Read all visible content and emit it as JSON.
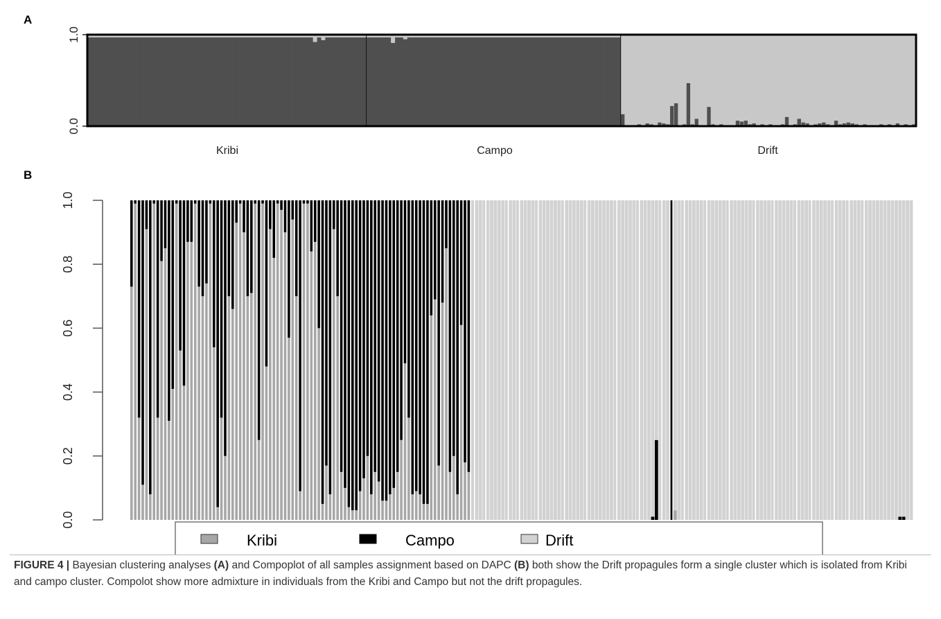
{
  "chart_data": [
    {
      "panel": "A",
      "type": "bar",
      "stacked": true,
      "ylim": [
        0,
        1
      ],
      "yticks": [
        "0.0",
        "1.0"
      ],
      "groups": [
        "Kribi",
        "Campo",
        "Drift"
      ],
      "group_sizes": [
        68,
        62,
        72
      ],
      "colors": {
        "Kribi": "#4f4f4f",
        "Drift": "#c8c8c8"
      },
      "drift_ancestry_kribi_campo": [
        0.13,
        0,
        0,
        0.01,
        0.02,
        0.01,
        0.03,
        0.02,
        0.01,
        0.04,
        0.03,
        0.02,
        0.22,
        0.25,
        0.01,
        0.02,
        0.47,
        0.02,
        0.08,
        0,
        0.01,
        0.21,
        0.02,
        0.01,
        0.02,
        0.01,
        0.01,
        0,
        0.06,
        0.05,
        0.06,
        0.02,
        0.03,
        0.01,
        0.02,
        0,
        0.02,
        0,
        0.01,
        0.02,
        0.1,
        0.01,
        0.02,
        0.08,
        0.04,
        0.03,
        0.01,
        0.02,
        0.03,
        0.04,
        0.02,
        0.01,
        0.06,
        0.02,
        0.03,
        0.04,
        0.03,
        0.02,
        0.01,
        0.02,
        0,
        0.01,
        0,
        0.02,
        0.01,
        0.02,
        0,
        0.03,
        0.01,
        0.02,
        0.01,
        0.02
      ],
      "kribi_campo_drift_ancestry": {
        "Kribi": [
          0,
          0,
          0,
          0,
          0,
          0,
          0,
          0,
          0,
          0,
          0,
          0,
          0,
          0,
          0,
          0,
          0,
          0,
          0,
          0,
          0,
          0,
          0,
          0,
          0,
          0,
          0,
          0,
          0,
          0,
          0,
          0,
          0,
          0,
          0,
          0,
          0,
          0,
          0,
          0,
          0,
          0,
          0,
          0,
          0,
          0,
          0,
          0,
          0,
          0,
          0,
          0,
          0,
          0,
          0,
          0.05,
          0,
          0.03,
          0,
          0,
          0,
          0,
          0,
          0,
          0,
          0,
          0,
          0
        ],
        "Campo": [
          0,
          0,
          0,
          0,
          0,
          0,
          0.06,
          0,
          0,
          0.02,
          0,
          0,
          0,
          0,
          0,
          0,
          0,
          0,
          0,
          0,
          0,
          0,
          0,
          0,
          0,
          0,
          0,
          0,
          0,
          0,
          0,
          0,
          0,
          0,
          0,
          0,
          0,
          0,
          0,
          0,
          0,
          0,
          0,
          0,
          0,
          0,
          0,
          0,
          0,
          0,
          0,
          0,
          0,
          0,
          0,
          0,
          0,
          0,
          0,
          0,
          0,
          0
        ]
      }
    },
    {
      "panel": "B",
      "type": "bar",
      "stacked": true,
      "ylim": [
        0,
        1
      ],
      "yticks": [
        "0.0",
        "0.2",
        "0.4",
        "0.6",
        "0.8",
        "1.0"
      ],
      "series": [
        {
          "name": "Kribi",
          "color": "#a7a7a7"
        },
        {
          "name": "Campo",
          "color": "#000000"
        },
        {
          "name": "Drift",
          "color": "#d2d2d2"
        }
      ],
      "kribi": [
        0.73,
        0.99,
        0.32,
        0.11,
        0.91,
        0.08,
        0.99,
        0.32,
        0.81,
        0.85,
        0.31,
        0.41,
        0.99,
        0.53,
        0.42,
        0.87,
        0.87,
        0.99,
        0.73,
        0.7,
        0.74,
        0.99,
        0.54,
        0.04,
        0.32,
        0.2,
        0.7,
        0.66,
        0.93,
        0.99,
        0.9,
        0.7,
        0.71,
        0.99,
        0.25,
        0.99,
        0.48,
        0.91,
        0.82,
        0.99,
        0.97,
        0.9,
        0.57,
        0.94,
        0.7,
        0.09,
        0.99,
        0.99,
        0.84,
        0.87,
        0.6,
        0.05,
        0.17,
        0.08,
        0.91,
        0.7,
        0.15,
        0.1,
        0.04,
        0.03,
        0.03,
        0.09,
        0.13,
        0.2,
        0.08,
        0.15,
        0.12,
        0.06,
        0.06,
        0.08,
        0.1,
        0.15,
        0.25,
        0.49,
        0.32,
        0.08,
        0.09,
        0.08,
        0.05,
        0.05,
        0.64,
        0.69,
        0.17,
        0.68,
        0.85,
        0.15,
        0.2,
        0.08,
        0.61,
        0.18,
        0.15
      ],
      "campo": [
        0.27,
        0.01,
        0.68,
        0.89,
        0.09,
        0.92,
        0.01,
        0.68,
        0.19,
        0.15,
        0.69,
        0.59,
        0.01,
        0.47,
        0.58,
        0.13,
        0.13,
        0.01,
        0.27,
        0.3,
        0.26,
        0.01,
        0.46,
        0.96,
        0.68,
        0.8,
        0.3,
        0.34,
        0.07,
        0.01,
        0.1,
        0.3,
        0.29,
        0.01,
        0.75,
        0.01,
        0.52,
        0.09,
        0.18,
        0.01,
        0.03,
        0.1,
        0.43,
        0.06,
        0.3,
        0.91,
        0.01,
        0.01,
        0.16,
        0.13,
        0.4,
        0.95,
        0.83,
        0.92,
        0.09,
        0.3,
        0.85,
        0.9,
        0.96,
        0.97,
        0.97,
        0.91,
        0.87,
        0.8,
        0.92,
        0.85,
        0.88,
        0.94,
        0.94,
        0.92,
        0.9,
        0.85,
        0.75,
        0.51,
        0.68,
        0.92,
        0.91,
        0.92,
        0.95,
        0.95,
        0.36,
        0.31,
        0.83,
        0.32,
        0.15,
        0.85,
        0.8,
        0.92,
        0.39,
        0.82,
        0.85
      ],
      "drift_campo": [
        0,
        0,
        0,
        0,
        0,
        0,
        0,
        0,
        0,
        0,
        0,
        0,
        0,
        0,
        0,
        0,
        0,
        0,
        0,
        0,
        0,
        0,
        0,
        0,
        0,
        0,
        0,
        0,
        0,
        0,
        0,
        0,
        0,
        0,
        0,
        0,
        0,
        0,
        0,
        0,
        0,
        0,
        0,
        0,
        0,
        0,
        0,
        0,
        0.01,
        0.25,
        0,
        0,
        0,
        1,
        0,
        0,
        0,
        0,
        0,
        0,
        0,
        0,
        0,
        0,
        0,
        0,
        0,
        0,
        0,
        0,
        0,
        0,
        0,
        0,
        0,
        0,
        0,
        0,
        0,
        0,
        0,
        0,
        0,
        0,
        0,
        0,
        0,
        0,
        0,
        0,
        0,
        0,
        0,
        0,
        0,
        0,
        0,
        0,
        0,
        0,
        0,
        0,
        0,
        0,
        0,
        0,
        0,
        0,
        0,
        0,
        0,
        0,
        0,
        0,
        0.01,
        0.01,
        0,
        0
      ],
      "drift_kribi": [
        0,
        0,
        0,
        0,
        0,
        0,
        0,
        0,
        0,
        0,
        0,
        0,
        0,
        0,
        0,
        0,
        0,
        0,
        0,
        0,
        0,
        0,
        0,
        0,
        0,
        0,
        0,
        0,
        0,
        0,
        0,
        0,
        0,
        0,
        0,
        0,
        0,
        0,
        0,
        0,
        0,
        0,
        0,
        0,
        0,
        0,
        0,
        0,
        0,
        0,
        0,
        0,
        0,
        0,
        0.03,
        0,
        0,
        0,
        0,
        0,
        0,
        0,
        0,
        0,
        0,
        0,
        0,
        0,
        0,
        0,
        0,
        0,
        0,
        0,
        0,
        0,
        0,
        0,
        0,
        0,
        0,
        0,
        0,
        0,
        0,
        0,
        0,
        0,
        0,
        0,
        0,
        0,
        0,
        0,
        0,
        0,
        0,
        0,
        0,
        0,
        0,
        0,
        0,
        0,
        0,
        0,
        0,
        0,
        0,
        0,
        0,
        0,
        0,
        0,
        0,
        0,
        0,
        0,
        0
      ]
    }
  ],
  "panel_labels": [
    "A",
    "B"
  ],
  "legend_labels": [
    "Kribi",
    "Campo",
    "Drift"
  ],
  "caption": {
    "prefix": "FIGURE 4 | ",
    "t1": "Bayesian clustering analyses ",
    "a": "(A)",
    "t2": " and Compoplot of all samples assignment based on DAPC ",
    "b": "(B)",
    "t3": " both show the Drift propagules form a single cluster which is isolated from Kribi and campo cluster. Compolot show more admixture in individuals from the Kribi and Campo but not the drift propagules."
  }
}
